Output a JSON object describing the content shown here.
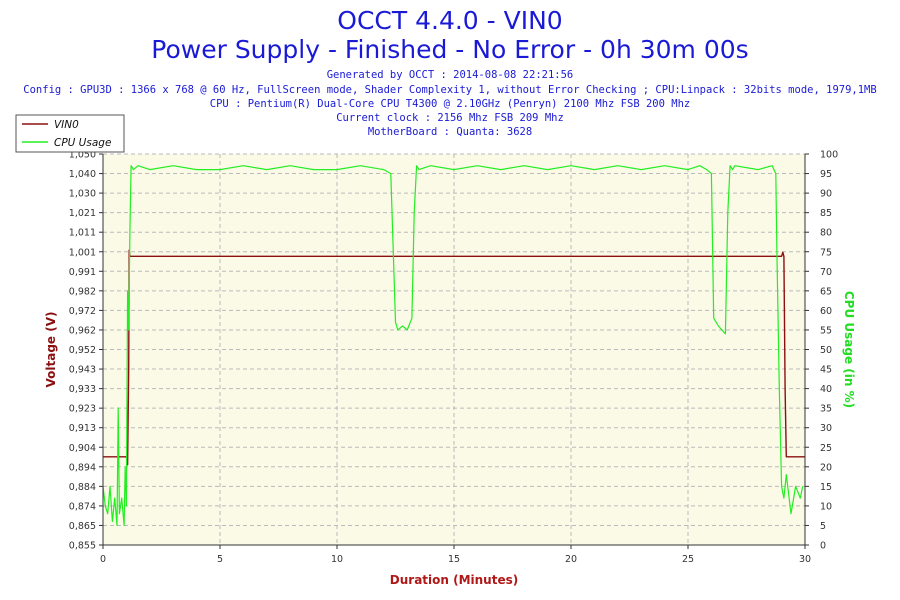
{
  "header": {
    "title_line1": "OCCT 4.4.0 - VIN0",
    "title_line2": "Power Supply - Finished - No Error - 0h 30m 00s",
    "generated": "Generated by OCCT : 2014-08-08 22:21:56",
    "config": "Config : GPU3D : 1366 x 768 @ 60 Hz, FullScreen mode, Shader Complexity 1, without Error Checking ; CPU:Linpack : 32bits mode, 1979,1MB",
    "cpu": "CPU : Pentium(R) Dual-Core CPU T4300 @ 2.10GHz (Penryn) 2100 Mhz FSB 200 Mhz",
    "clock": "Current clock : 2156 Mhz FSB 209 Mhz",
    "motherboard": "MotherBoard : Quanta: 3628"
  },
  "colors": {
    "title": "#1a1ad6",
    "plot_bg": "#fafae6",
    "voltage": "#8b1010",
    "cpu": "#22ee22",
    "grid": "#bbbbbb"
  },
  "chart_data": {
    "type": "line",
    "title": "OCCT 4.4.0 - VIN0",
    "xlabel": "Duration (Minutes)",
    "ylabel_left": "Voltage (V)",
    "ylabel_right": "CPU Usage (in %)",
    "xlim": [
      0,
      30
    ],
    "ylim_left": [
      0.855,
      1.05
    ],
    "ylim_right": [
      0,
      100
    ],
    "grid": true,
    "legend_position": "top-left",
    "x_ticks": [
      "0",
      "5",
      "10",
      "15",
      "20",
      "25",
      "30"
    ],
    "y_left_ticks": [
      "0,855",
      "0,865",
      "0,874",
      "0,884",
      "0,894",
      "0,904",
      "0,913",
      "0,923",
      "0,933",
      "0,943",
      "0,952",
      "0,962",
      "0,972",
      "0,982",
      "0,991",
      "1,001",
      "1,011",
      "1,021",
      "1,030",
      "1,040",
      "1,050"
    ],
    "y_right_ticks": [
      "0",
      "5",
      "10",
      "15",
      "20",
      "25",
      "30",
      "35",
      "40",
      "45",
      "50",
      "55",
      "60",
      "65",
      "70",
      "75",
      "80",
      "85",
      "90",
      "95",
      "100"
    ],
    "series": [
      {
        "name": "VIN0",
        "axis": "left",
        "color": "#8b1010",
        "x": [
          0,
          1.0,
          1.05,
          1.1,
          1.12,
          1.15,
          1.2,
          28.8,
          29.0,
          29.05,
          29.1,
          29.15,
          29.2,
          30
        ],
        "y": [
          0.899,
          0.899,
          0.895,
          0.943,
          1.002,
          0.999,
          0.999,
          0.999,
          0.999,
          1.001,
          0.999,
          0.933,
          0.899,
          0.899
        ]
      },
      {
        "name": "CPU Usage",
        "axis": "right",
        "color": "#22ee22",
        "x": [
          0,
          0.1,
          0.2,
          0.3,
          0.4,
          0.5,
          0.6,
          0.65,
          0.7,
          0.8,
          0.9,
          0.95,
          1.0,
          1.05,
          1.1,
          1.15,
          1.2,
          1.3,
          1.5,
          2,
          3,
          4,
          5,
          6,
          7,
          8,
          9,
          10,
          11,
          12,
          12.3,
          12.5,
          12.6,
          12.8,
          13.0,
          13.2,
          13.3,
          13.4,
          13.5,
          14,
          15,
          16,
          17,
          18,
          19,
          20,
          21,
          22,
          23,
          24,
          25,
          25.5,
          25.8,
          26.0,
          26.1,
          26.3,
          26.6,
          26.7,
          26.8,
          26.9,
          27,
          28,
          28.6,
          28.75,
          28.8,
          28.9,
          29.0,
          29.1,
          29.2,
          29.4,
          29.6,
          29.8,
          29.9
        ],
        "y": [
          15,
          10,
          8,
          15,
          6,
          12,
          5,
          35,
          8,
          12,
          5,
          20,
          10,
          65,
          55,
          80,
          97,
          96,
          97,
          96,
          97,
          96,
          96,
          97,
          96,
          97,
          96,
          96,
          97,
          96,
          95,
          57,
          55,
          56,
          55,
          58,
          85,
          97,
          96,
          97,
          96,
          97,
          96,
          97,
          96,
          97,
          96,
          97,
          96,
          97,
          96,
          97,
          96,
          95,
          58,
          56,
          54,
          85,
          97,
          96,
          97,
          96,
          97,
          95,
          75,
          40,
          15,
          12,
          18,
          8,
          15,
          12,
          15
        ]
      }
    ]
  }
}
